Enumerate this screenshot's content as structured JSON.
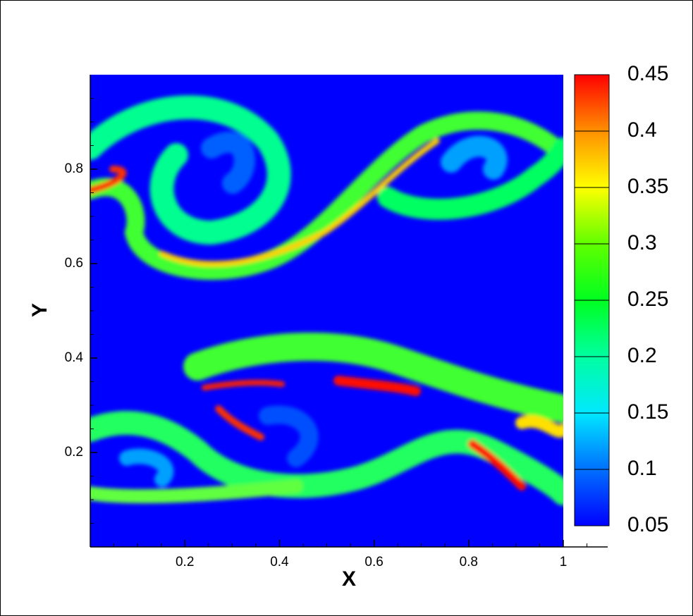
{
  "chart_data": {
    "type": "contour",
    "x_label": "X",
    "y_label": "Y",
    "xlim": [
      0,
      1.09
    ],
    "ylim": [
      0,
      1
    ],
    "xticks": [
      0.2,
      0.4,
      0.6,
      0.8,
      1
    ],
    "yticks": [
      0.2,
      0.4,
      0.6,
      0.8
    ],
    "levels": [
      0.05,
      0.1,
      0.15,
      0.2,
      0.25,
      0.3,
      0.35,
      0.4,
      0.45
    ],
    "colormap": [
      "#0000ff",
      "#0070ff",
      "#00e8ff",
      "#00ffa0",
      "#00ff20",
      "#60ff00",
      "#ffff00",
      "#ff9000",
      "#ff0000"
    ]
  }
}
